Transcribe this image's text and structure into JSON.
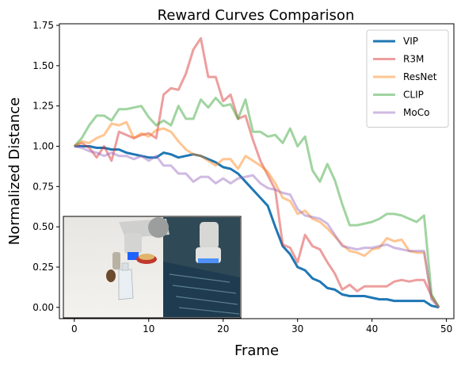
{
  "chart_data": {
    "type": "line",
    "title": "Reward Curves Comparison",
    "xlabel": "Frame",
    "ylabel": "Normalized Distance",
    "xlim": [
      -2,
      51
    ],
    "ylim": [
      -0.07,
      1.76
    ],
    "xticks": [
      0,
      10,
      20,
      30,
      40,
      50
    ],
    "yticks": [
      0.0,
      0.25,
      0.5,
      0.75,
      1.0,
      1.25,
      1.5,
      1.75
    ],
    "ytick_labels": [
      "0.00",
      "0.25",
      "0.50",
      "0.75",
      "1.00",
      "1.25",
      "1.50",
      "1.75"
    ],
    "grid": false,
    "legend_position": "top-right",
    "inset_image": {
      "description": "robot arm grasping bottle on table",
      "position": "bottom-left"
    },
    "x": [
      0,
      1,
      2,
      3,
      4,
      5,
      6,
      7,
      8,
      9,
      10,
      11,
      12,
      13,
      14,
      15,
      16,
      17,
      18,
      19,
      20,
      21,
      22,
      23,
      24,
      25,
      26,
      27,
      28,
      29,
      30,
      31,
      32,
      33,
      34,
      35,
      36,
      37,
      38,
      39,
      40,
      41,
      42,
      43,
      44,
      45,
      46,
      47,
      48,
      49
    ],
    "series": [
      {
        "name": "VIP",
        "color": "#1f77b4",
        "alpha": 1.0,
        "width": 3.0,
        "values": [
          1.0,
          1.0,
          1.0,
          0.99,
          0.99,
          0.98,
          0.98,
          0.96,
          0.95,
          0.94,
          0.93,
          0.93,
          0.96,
          0.95,
          0.93,
          0.94,
          0.95,
          0.94,
          0.92,
          0.9,
          0.87,
          0.86,
          0.83,
          0.78,
          0.73,
          0.68,
          0.63,
          0.5,
          0.38,
          0.33,
          0.25,
          0.23,
          0.18,
          0.16,
          0.12,
          0.11,
          0.08,
          0.07,
          0.07,
          0.07,
          0.06,
          0.05,
          0.05,
          0.04,
          0.04,
          0.04,
          0.04,
          0.04,
          0.01,
          0.0
        ]
      },
      {
        "name": "R3M",
        "color": "#d62728",
        "alpha": 0.45,
        "width": 3.0,
        "values": [
          1.0,
          1.02,
          0.99,
          0.93,
          1.0,
          0.91,
          1.09,
          1.07,
          1.05,
          1.07,
          1.08,
          1.05,
          1.32,
          1.36,
          1.35,
          1.45,
          1.6,
          1.67,
          1.43,
          1.43,
          1.28,
          1.32,
          1.17,
          1.19,
          1.04,
          0.91,
          0.82,
          0.73,
          0.39,
          0.37,
          0.28,
          0.45,
          0.38,
          0.36,
          0.28,
          0.21,
          0.11,
          0.14,
          0.1,
          0.13,
          0.13,
          0.13,
          0.13,
          0.16,
          0.17,
          0.16,
          0.17,
          0.17,
          0.07,
          0.0
        ]
      },
      {
        "name": "ResNet",
        "color": "#ff7f0e",
        "alpha": 0.45,
        "width": 3.0,
        "values": [
          1.0,
          1.03,
          1.02,
          1.05,
          1.07,
          1.14,
          1.13,
          1.15,
          1.05,
          1.08,
          1.06,
          1.1,
          1.11,
          1.09,
          1.03,
          0.98,
          0.95,
          0.94,
          0.91,
          0.88,
          0.92,
          0.92,
          0.86,
          0.94,
          0.91,
          0.88,
          0.84,
          0.77,
          0.68,
          0.66,
          0.58,
          0.6,
          0.55,
          0.53,
          0.49,
          0.44,
          0.39,
          0.35,
          0.34,
          0.32,
          0.36,
          0.37,
          0.43,
          0.41,
          0.42,
          0.35,
          0.34,
          0.34,
          0.06,
          0.0
        ]
      },
      {
        "name": "CLIP",
        "color": "#2ca02c",
        "alpha": 0.45,
        "width": 3.0,
        "values": [
          1.0,
          1.05,
          1.13,
          1.19,
          1.19,
          1.16,
          1.23,
          1.23,
          1.24,
          1.25,
          1.18,
          1.13,
          1.16,
          1.13,
          1.25,
          1.17,
          1.17,
          1.29,
          1.24,
          1.3,
          1.25,
          1.26,
          1.17,
          1.29,
          1.09,
          1.09,
          1.06,
          1.07,
          1.02,
          1.11,
          1.0,
          1.06,
          0.85,
          0.78,
          0.89,
          0.79,
          0.64,
          0.51,
          0.51,
          0.52,
          0.53,
          0.55,
          0.58,
          0.58,
          0.57,
          0.55,
          0.53,
          0.57,
          0.08,
          0.0
        ]
      },
      {
        "name": "MoCo",
        "color": "#9467bd",
        "alpha": 0.45,
        "width": 3.0,
        "values": [
          1.0,
          0.99,
          0.97,
          0.96,
          0.94,
          0.96,
          0.94,
          0.94,
          0.92,
          0.94,
          0.91,
          0.94,
          0.88,
          0.88,
          0.83,
          0.83,
          0.78,
          0.81,
          0.81,
          0.77,
          0.8,
          0.77,
          0.8,
          0.81,
          0.82,
          0.77,
          0.74,
          0.73,
          0.71,
          0.7,
          0.61,
          0.57,
          0.56,
          0.55,
          0.52,
          0.45,
          0.38,
          0.37,
          0.36,
          0.37,
          0.37,
          0.38,
          0.39,
          0.37,
          0.36,
          0.35,
          0.35,
          0.35,
          0.05,
          0.0
        ]
      }
    ]
  }
}
